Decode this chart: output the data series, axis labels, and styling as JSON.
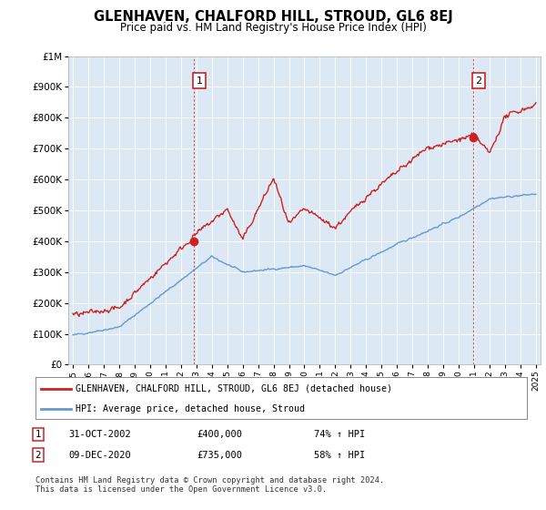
{
  "title": "GLENHAVEN, CHALFORD HILL, STROUD, GL6 8EJ",
  "subtitle": "Price paid vs. HM Land Registry's House Price Index (HPI)",
  "ylim": [
    0,
    1000000
  ],
  "yticks": [
    0,
    100000,
    200000,
    300000,
    400000,
    500000,
    600000,
    700000,
    800000,
    900000,
    1000000
  ],
  "xlim_start": 1994.7,
  "xlim_end": 2025.3,
  "red_color": "#cc2222",
  "blue_color": "#6699cc",
  "sale1_x": 2002.83,
  "sale1_y": 400000,
  "sale2_x": 2020.93,
  "sale2_y": 735000,
  "legend_red_label": "GLENHAVEN, CHALFORD HILL, STROUD, GL6 8EJ (detached house)",
  "legend_blue_label": "HPI: Average price, detached house, Stroud",
  "table_row1": [
    "1",
    "31-OCT-2002",
    "£400,000",
    "74% ↑ HPI"
  ],
  "table_row2": [
    "2",
    "09-DEC-2020",
    "£735,000",
    "58% ↑ HPI"
  ],
  "footnote": "Contains HM Land Registry data © Crown copyright and database right 2024.\nThis data is licensed under the Open Government Licence v3.0.",
  "bg_color": "#ffffff",
  "plot_bg_color": "#dce9f5"
}
